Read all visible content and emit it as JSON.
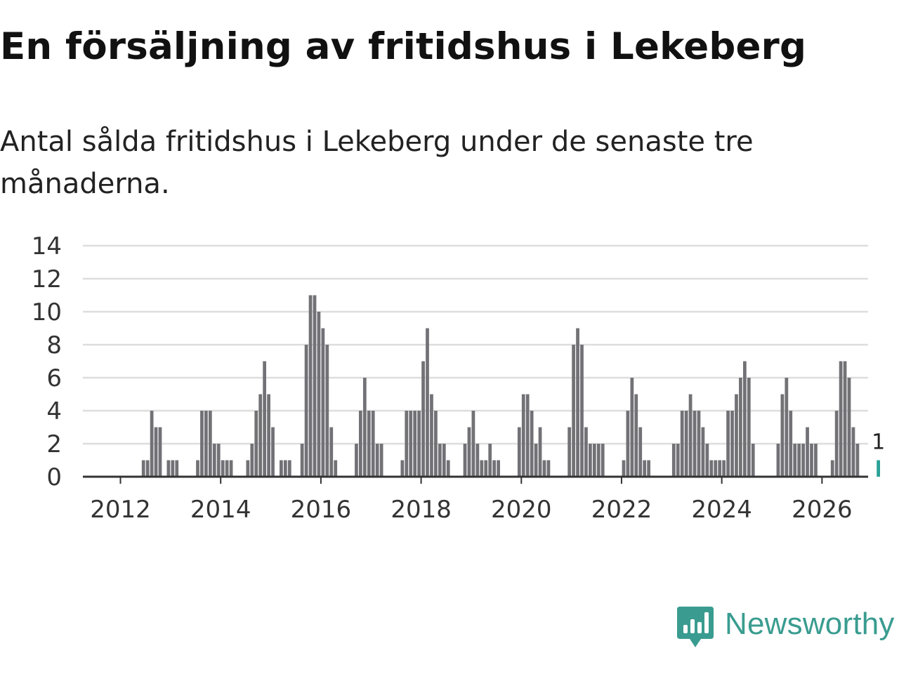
{
  "title": "En försäljning av fritidshus i Lekeberg",
  "subtitle": "Antal sålda fritidshus i Lekeberg under de senaste tre månaderna.",
  "brand": {
    "name": "Newsworthy",
    "icon": "newsworthy-logo-icon",
    "color": "#3a9c90"
  },
  "chart_data": {
    "type": "bar",
    "title": "En försäljning av fritidshus i Lekeberg",
    "subtitle": "Antal sålda fritidshus i Lekeberg under de senaste tre månaderna.",
    "xlabel": "",
    "ylabel": "",
    "ylim": [
      0,
      14
    ],
    "yticks": [
      0,
      2,
      4,
      6,
      8,
      10,
      12,
      14
    ],
    "xticks": [
      "2012",
      "2014",
      "2016",
      "2018",
      "2020",
      "2022",
      "2024",
      "2026"
    ],
    "xrange": [
      2011.25,
      2026.92
    ],
    "start": [
      2011,
      7
    ],
    "grid": true,
    "bar_color": "#727176",
    "highlight_color": "#2aa198",
    "highlight_label": "1",
    "series": [
      {
        "name": "Antal sålda fritidshus",
        "values": [
          0,
          0,
          0,
          0,
          0,
          0,
          0,
          0,
          0,
          0,
          0,
          1,
          1,
          4,
          3,
          3,
          0,
          1,
          1,
          1,
          0,
          0,
          0,
          0,
          1,
          4,
          4,
          4,
          2,
          2,
          1,
          1,
          1,
          0,
          0,
          0,
          1,
          2,
          4,
          5,
          7,
          5,
          3,
          0,
          1,
          1,
          1,
          0,
          0,
          2,
          8,
          11,
          11,
          10,
          9,
          8,
          3,
          1,
          0,
          0,
          0,
          0,
          2,
          4,
          6,
          4,
          4,
          2,
          2,
          0,
          0,
          0,
          0,
          1,
          4,
          4,
          4,
          4,
          7,
          9,
          5,
          4,
          2,
          2,
          1,
          0,
          0,
          0,
          2,
          3,
          4,
          2,
          1,
          1,
          2,
          1,
          1,
          0,
          0,
          0,
          0,
          3,
          5,
          5,
          4,
          2,
          3,
          1,
          1,
          0,
          0,
          0,
          0,
          3,
          8,
          9,
          8,
          3,
          2,
          2,
          2,
          2,
          0,
          0,
          0,
          0,
          1,
          4,
          6,
          5,
          3,
          1,
          1,
          0,
          0,
          0,
          0,
          0,
          2,
          2,
          4,
          4,
          5,
          4,
          4,
          3,
          2,
          1,
          1,
          1,
          1,
          4,
          4,
          5,
          6,
          7,
          6,
          2,
          0,
          0,
          0,
          0,
          0,
          2,
          5,
          6,
          4,
          2,
          2,
          2,
          3,
          2,
          2,
          0,
          0,
          0,
          1,
          4,
          7,
          7,
          6,
          3,
          2,
          0,
          0,
          0,
          0,
          1
        ]
      }
    ]
  }
}
